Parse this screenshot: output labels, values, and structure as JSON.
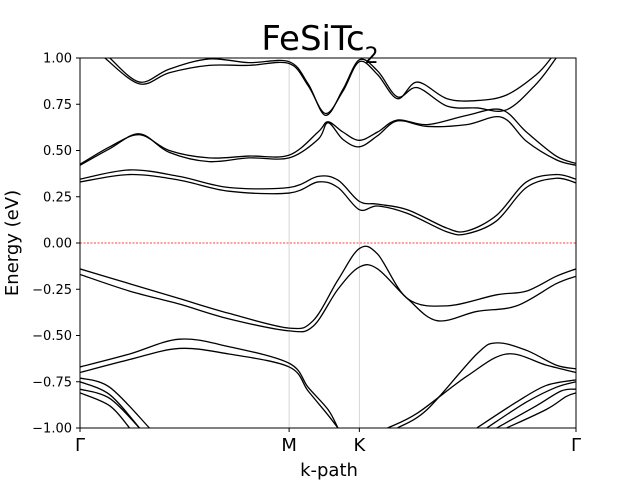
{
  "chart_data": {
    "type": "line",
    "title": "FeSiTc",
    "title_subscript": "2",
    "xlabel": "k-path",
    "ylabel": "Energy (eV)",
    "ylim": [
      -1.0,
      1.0
    ],
    "xlim": [
      0,
      1
    ],
    "grid": "vertical lines at high-symmetry points",
    "high_symmetry_points": [
      {
        "label": "Γ",
        "x": 0.0
      },
      {
        "label": "M",
        "x": 0.4216
      },
      {
        "label": "K",
        "x": 0.5632
      },
      {
        "label": "Γ",
        "x": 1.0
      }
    ],
    "y_ticks": [
      {
        "value": -1.0,
        "label": "−1.00"
      },
      {
        "value": -0.75,
        "label": "−0.75"
      },
      {
        "value": -0.5,
        "label": "−0.50"
      },
      {
        "value": -0.25,
        "label": "−0.25"
      },
      {
        "value": 0.0,
        "label": "0.00"
      },
      {
        "value": 0.25,
        "label": "0.25"
      },
      {
        "value": 0.5,
        "label": "0.50"
      },
      {
        "value": 0.75,
        "label": "0.75"
      },
      {
        "value": 1.0,
        "label": "1.00"
      }
    ],
    "fermi_level": {
      "y": 0.0,
      "color": "#ff0000",
      "style": "dashed"
    },
    "line_color": "#000000",
    "series": [
      {
        "points": [
          [
            0.0,
            0.42
          ],
          [
            0.06,
            0.51
          ],
          [
            0.12,
            0.59
          ],
          [
            0.18,
            0.49
          ],
          [
            0.26,
            0.44
          ],
          [
            0.34,
            0.46
          ],
          [
            0.4216,
            0.46
          ],
          [
            0.48,
            0.56
          ],
          [
            0.5,
            0.65
          ],
          [
            0.53,
            0.56
          ],
          [
            0.5632,
            0.52
          ],
          [
            0.6,
            0.58
          ],
          [
            0.64,
            0.66
          ],
          [
            0.7,
            0.63
          ],
          [
            0.78,
            0.64
          ],
          [
            0.85,
            0.68
          ],
          [
            0.9,
            0.55
          ],
          [
            0.96,
            0.45
          ],
          [
            1.0,
            0.42
          ]
        ]
      },
      {
        "points": [
          [
            0.0,
            0.425
          ],
          [
            0.06,
            0.52
          ],
          [
            0.12,
            0.585
          ],
          [
            0.18,
            0.5
          ],
          [
            0.26,
            0.46
          ],
          [
            0.34,
            0.47
          ],
          [
            0.4216,
            0.475
          ],
          [
            0.48,
            0.6
          ],
          [
            0.5,
            0.655
          ],
          [
            0.53,
            0.6
          ],
          [
            0.5632,
            0.555
          ],
          [
            0.6,
            0.6
          ],
          [
            0.64,
            0.665
          ],
          [
            0.7,
            0.64
          ],
          [
            0.78,
            0.69
          ],
          [
            0.85,
            0.72
          ],
          [
            0.9,
            0.6
          ],
          [
            0.96,
            0.47
          ],
          [
            1.0,
            0.43
          ]
        ]
      },
      {
        "points": [
          [
            0.0,
            0.33
          ],
          [
            0.1,
            0.37
          ],
          [
            0.2,
            0.34
          ],
          [
            0.3,
            0.28
          ],
          [
            0.4216,
            0.27
          ],
          [
            0.48,
            0.33
          ],
          [
            0.52,
            0.3
          ],
          [
            0.5632,
            0.18
          ],
          [
            0.6,
            0.2
          ],
          [
            0.66,
            0.16
          ],
          [
            0.74,
            0.06
          ],
          [
            0.78,
            0.05
          ],
          [
            0.84,
            0.12
          ],
          [
            0.9,
            0.3
          ],
          [
            0.96,
            0.35
          ],
          [
            1.0,
            0.325
          ]
        ]
      },
      {
        "points": [
          [
            0.0,
            0.345
          ],
          [
            0.1,
            0.395
          ],
          [
            0.2,
            0.36
          ],
          [
            0.3,
            0.3
          ],
          [
            0.4216,
            0.3
          ],
          [
            0.48,
            0.36
          ],
          [
            0.52,
            0.34
          ],
          [
            0.5632,
            0.225
          ],
          [
            0.6,
            0.21
          ],
          [
            0.66,
            0.18
          ],
          [
            0.74,
            0.08
          ],
          [
            0.78,
            0.065
          ],
          [
            0.84,
            0.15
          ],
          [
            0.9,
            0.33
          ],
          [
            0.96,
            0.37
          ],
          [
            1.0,
            0.345
          ]
        ]
      },
      {
        "points": [
          [
            0.0,
            -0.14
          ],
          [
            0.1,
            -0.22
          ],
          [
            0.2,
            -0.3
          ],
          [
            0.3,
            -0.38
          ],
          [
            0.4216,
            -0.46
          ],
          [
            0.47,
            -0.42
          ],
          [
            0.52,
            -0.2
          ],
          [
            0.5632,
            -0.03
          ],
          [
            0.6,
            -0.06
          ],
          [
            0.66,
            -0.3
          ],
          [
            0.74,
            -0.34
          ],
          [
            0.84,
            -0.28
          ],
          [
            0.9,
            -0.26
          ],
          [
            0.96,
            -0.18
          ],
          [
            1.0,
            -0.14
          ]
        ]
      },
      {
        "points": [
          [
            0.0,
            -0.17
          ],
          [
            0.1,
            -0.26
          ],
          [
            0.2,
            -0.33
          ],
          [
            0.3,
            -0.41
          ],
          [
            0.4216,
            -0.475
          ],
          [
            0.47,
            -0.45
          ],
          [
            0.52,
            -0.25
          ],
          [
            0.5632,
            -0.13
          ],
          [
            0.6,
            -0.14
          ],
          [
            0.66,
            -0.3
          ],
          [
            0.72,
            -0.42
          ],
          [
            0.8,
            -0.37
          ],
          [
            0.88,
            -0.34
          ],
          [
            0.96,
            -0.22
          ],
          [
            1.0,
            -0.18
          ]
        ]
      },
      {
        "points": [
          [
            0.0,
            -0.67
          ],
          [
            0.1,
            -0.6
          ],
          [
            0.2,
            -0.52
          ],
          [
            0.3,
            -0.56
          ],
          [
            0.4216,
            -0.65
          ],
          [
            0.46,
            -0.78
          ],
          [
            0.5,
            -0.9
          ],
          [
            0.52,
            -1.0
          ]
        ]
      },
      {
        "points": [
          [
            0.0,
            -0.7
          ],
          [
            0.1,
            -0.63
          ],
          [
            0.2,
            -0.57
          ],
          [
            0.3,
            -0.6
          ],
          [
            0.4216,
            -0.67
          ],
          [
            0.46,
            -0.8
          ],
          [
            0.5,
            -0.93
          ],
          [
            0.52,
            -1.0
          ]
        ]
      },
      {
        "points": [
          [
            0.64,
            -1.0
          ],
          [
            0.7,
            -0.9
          ],
          [
            0.8,
            -0.6
          ],
          [
            0.84,
            -0.54
          ],
          [
            0.9,
            -0.58
          ],
          [
            0.96,
            -0.66
          ],
          [
            1.0,
            -0.68
          ]
        ]
      },
      {
        "points": [
          [
            0.62,
            -1.0
          ],
          [
            0.68,
            -0.92
          ],
          [
            0.78,
            -0.72
          ],
          [
            0.86,
            -0.6
          ],
          [
            0.94,
            -0.66
          ],
          [
            1.0,
            -0.7
          ]
        ]
      },
      {
        "points": [
          [
            0.0,
            -0.73
          ],
          [
            0.06,
            -0.78
          ],
          [
            0.14,
            -1.0
          ]
        ]
      },
      {
        "points": [
          [
            0.0,
            -0.75
          ],
          [
            0.06,
            -0.82
          ],
          [
            0.12,
            -1.0
          ]
        ]
      },
      {
        "points": [
          [
            0.0,
            -0.79
          ],
          [
            0.06,
            -0.84
          ],
          [
            0.12,
            -1.0
          ]
        ]
      },
      {
        "points": [
          [
            0.0,
            -0.81
          ],
          [
            0.06,
            -0.88
          ],
          [
            0.1,
            -1.0
          ]
        ]
      },
      {
        "points": [
          [
            0.8,
            -1.0
          ],
          [
            0.88,
            -0.86
          ],
          [
            0.94,
            -0.77
          ],
          [
            1.0,
            -0.74
          ]
        ]
      },
      {
        "points": [
          [
            0.82,
            -1.0
          ],
          [
            0.9,
            -0.86
          ],
          [
            0.96,
            -0.78
          ],
          [
            1.0,
            -0.75
          ]
        ]
      },
      {
        "points": [
          [
            0.84,
            -1.0
          ],
          [
            0.92,
            -0.88
          ],
          [
            0.97,
            -0.8
          ],
          [
            1.0,
            -0.79
          ]
        ]
      },
      {
        "points": [
          [
            0.86,
            -1.0
          ],
          [
            0.94,
            -0.9
          ],
          [
            0.98,
            -0.83
          ],
          [
            1.0,
            -0.81
          ]
        ]
      },
      {
        "points": [
          [
            0.05,
            1.0
          ],
          [
            0.12,
            0.86
          ],
          [
            0.18,
            0.92
          ],
          [
            0.26,
            0.96
          ],
          [
            0.34,
            0.96
          ],
          [
            0.4216,
            0.97
          ],
          [
            0.46,
            0.85
          ],
          [
            0.495,
            0.7
          ],
          [
            0.53,
            0.82
          ],
          [
            0.5632,
            0.98
          ],
          [
            0.6,
            0.91
          ],
          [
            0.64,
            0.78
          ],
          [
            0.68,
            0.87
          ],
          [
            0.74,
            0.78
          ],
          [
            0.8,
            0.77
          ],
          [
            0.86,
            0.8
          ],
          [
            0.92,
            0.91
          ],
          [
            0.95,
            1.0
          ]
        ]
      },
      {
        "points": [
          [
            0.06,
            1.0
          ],
          [
            0.12,
            0.87
          ],
          [
            0.18,
            0.94
          ],
          [
            0.26,
            0.995
          ],
          [
            0.34,
            0.975
          ],
          [
            0.4216,
            0.98
          ],
          [
            0.46,
            0.86
          ],
          [
            0.495,
            0.69
          ],
          [
            0.53,
            0.83
          ],
          [
            0.5632,
            0.99
          ],
          [
            0.6,
            0.93
          ],
          [
            0.64,
            0.79
          ],
          [
            0.68,
            0.84
          ],
          [
            0.74,
            0.74
          ],
          [
            0.8,
            0.73
          ],
          [
            0.86,
            0.72
          ],
          [
            0.92,
            0.86
          ],
          [
            0.96,
            1.0
          ]
        ]
      }
    ]
  }
}
